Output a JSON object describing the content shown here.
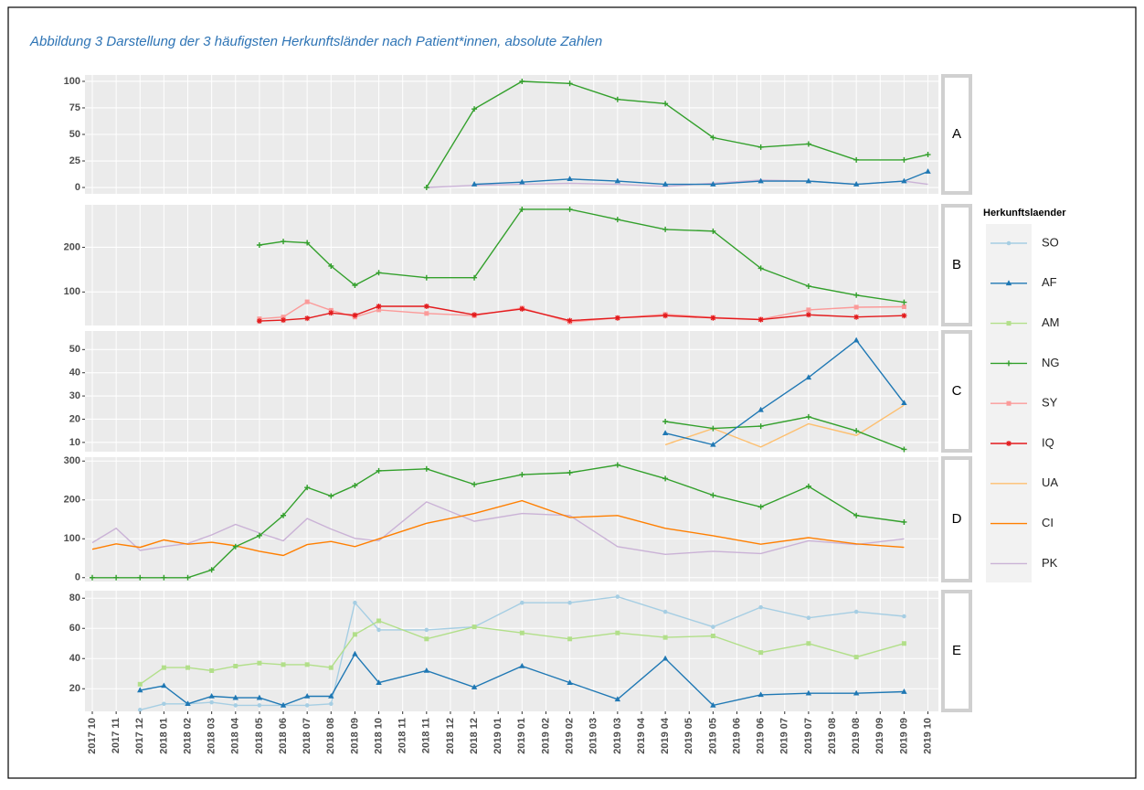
{
  "chart_data": {
    "type": "line",
    "title": "Abbildung 3 Darstellung der 3 häufigsten Herkunftsländer nach Patient*innen, absolute Zahlen",
    "categories": [
      "2017 10",
      "2017 11",
      "2017 12",
      "2018 01",
      "2018 02",
      "2018 03",
      "2018 04",
      "2018 05",
      "2018 06",
      "2018 07",
      "2018 08",
      "2018 09",
      "2018 10",
      "2018 11",
      "2018 11",
      "2018 12",
      "2018 12",
      "2019 01",
      "2019 01",
      "2019 02",
      "2019 02",
      "2019 03",
      "2019 03",
      "2019 04",
      "2019 04",
      "2019 05",
      "2019 05",
      "2019 06",
      "2019 06",
      "2019 07",
      "2019 07",
      "2019 08",
      "2019 08",
      "2019 09",
      "2019 09",
      "2019 10"
    ],
    "legend": {
      "title": "Herkunftslaender",
      "items": [
        {
          "name": "SO",
          "color": "#a6cee3",
          "marker": "circle"
        },
        {
          "name": "AF",
          "color": "#1f78b4",
          "marker": "triangle"
        },
        {
          "name": "AM",
          "color": "#b2df8a",
          "marker": "square"
        },
        {
          "name": "NG",
          "color": "#33a02c",
          "marker": "plus"
        },
        {
          "name": "SY",
          "color": "#fb9a99",
          "marker": "square"
        },
        {
          "name": "IQ",
          "color": "#e31a1c",
          "marker": "star"
        },
        {
          "name": "UA",
          "color": "#fdbf6f",
          "marker": "none"
        },
        {
          "name": "CI",
          "color": "#ff7f00",
          "marker": "none"
        },
        {
          "name": "PK",
          "color": "#cab2d6",
          "marker": "none"
        }
      ]
    },
    "grid": true,
    "facets": [
      {
        "label": "A",
        "ylim": [
          -6,
          106
        ],
        "yticks": [
          0,
          25,
          50,
          75,
          100
        ],
        "series": [
          {
            "name": "PK",
            "x": [
              "2018 11",
              "2018 12",
              "2019 01",
              "2019 02",
              "2019 03",
              "2019 04",
              "2019 05",
              "2019 06",
              "2019 07",
              "2019 08",
              "2019 09",
              "2019 10"
            ],
            "values": [
              0,
              2,
              3,
              4,
              3,
              1,
              4,
              7,
              6,
              3,
              6,
              3
            ]
          },
          {
            "name": "AF",
            "x": [
              "2018 12",
              "2019 01",
              "2019 02",
              "2019 03",
              "2019 04",
              "2019 05",
              "2019 06",
              "2019 07",
              "2019 08",
              "2019 09",
              "2019 10"
            ],
            "values": [
              3,
              5,
              8,
              6,
              3,
              3,
              6,
              6,
              3,
              6,
              15
            ]
          },
          {
            "name": "NG",
            "x": [
              "2018 11",
              "2018 12",
              "2019 01",
              "2019 02",
              "2019 03",
              "2019 04",
              "2019 05",
              "2019 06",
              "2019 07",
              "2019 08",
              "2019 09",
              "2019 10"
            ],
            "values": [
              0,
              74,
              100,
              98,
              83,
              79,
              47,
              38,
              41,
              26,
              26,
              31
            ]
          }
        ]
      },
      {
        "label": "B",
        "ylim": [
          25,
          295
        ],
        "yticks": [
          100,
          200
        ],
        "series": [
          {
            "name": "SY",
            "x": [
              "2018 05",
              "2018 06",
              "2018 07",
              "2018 08",
              "2018 09",
              "2018 10",
              "2018 11",
              "2018 12",
              "2019 01",
              "2019 02",
              "2019 03",
              "2019 04",
              "2019 05",
              "2019 06",
              "2019 07",
              "2019 08",
              "2019 09"
            ],
            "values": [
              40,
              44,
              78,
              59,
              44,
              60,
              52,
              47,
              64,
              33,
              42,
              50,
              43,
              39,
              60,
              66,
              67
            ]
          },
          {
            "name": "IQ",
            "x": [
              "2018 05",
              "2018 06",
              "2018 07",
              "2018 08",
              "2018 09",
              "2018 10",
              "2018 11",
              "2018 12",
              "2019 01",
              "2019 02",
              "2019 03",
              "2019 04",
              "2019 05",
              "2019 06",
              "2019 07",
              "2019 08",
              "2019 09"
            ],
            "values": [
              35,
              37,
              41,
              53,
              48,
              68,
              68,
              49,
              62,
              36,
              42,
              47,
              42,
              38,
              49,
              44,
              47
            ]
          },
          {
            "name": "NG",
            "x": [
              "2018 05",
              "2018 06",
              "2018 07",
              "2018 08",
              "2018 09",
              "2018 10",
              "2018 11",
              "2018 12",
              "2019 01",
              "2019 02",
              "2019 03",
              "2019 04",
              "2019 05",
              "2019 06",
              "2019 07",
              "2019 08",
              "2019 09"
            ],
            "values": [
              205,
              213,
              210,
              158,
              115,
              143,
              132,
              132,
              285,
              285,
              262,
              240,
              236,
              153,
              113,
              93,
              77
            ]
          }
        ]
      },
      {
        "label": "C",
        "ylim": [
          6,
          58
        ],
        "yticks": [
          10,
          20,
          30,
          40,
          50
        ],
        "series": [
          {
            "name": "UA",
            "x": [
              "2019 04",
              "2019 05",
              "2019 06",
              "2019 07",
              "2019 08",
              "2019 09"
            ],
            "values": [
              9,
              16,
              8,
              18,
              13,
              26
            ]
          },
          {
            "name": "NG",
            "x": [
              "2019 04",
              "2019 05",
              "2019 06",
              "2019 07",
              "2019 08",
              "2019 09"
            ],
            "values": [
              19,
              16,
              17,
              21,
              15,
              7
            ]
          },
          {
            "name": "AF",
            "x": [
              "2019 04",
              "2019 05",
              "2019 06",
              "2019 07",
              "2019 08",
              "2019 09"
            ],
            "values": [
              14,
              9,
              24,
              38,
              54,
              27
            ]
          }
        ]
      },
      {
        "label": "D",
        "ylim": [
          -10,
          310
        ],
        "yticks": [
          0,
          100,
          200,
          300
        ],
        "series": [
          {
            "name": "PK",
            "x": [
              "2017 10",
              "2017 11",
              "2017 12",
              "2018 01",
              "2018 02",
              "2018 03",
              "2018 04",
              "2018 05",
              "2018 06",
              "2018 07",
              "2018 08",
              "2018 09",
              "2018 10",
              "2018 11",
              "2018 12",
              "2019 01",
              "2019 02",
              "2019 03",
              "2019 04",
              "2019 05",
              "2019 06",
              "2019 07",
              "2019 08",
              "2019 09"
            ],
            "values": [
              90,
              127,
              70,
              80,
              88,
              110,
              137,
              115,
              95,
              152,
              125,
              101,
              95,
              195,
              145,
              165,
              160,
              80,
              60,
              68,
              62,
              95,
              85,
              100
            ]
          },
          {
            "name": "CI",
            "x": [
              "2017 10",
              "2017 11",
              "2017 12",
              "2018 01",
              "2018 02",
              "2018 03",
              "2018 04",
              "2018 05",
              "2018 06",
              "2018 07",
              "2018 08",
              "2018 09",
              "2018 10",
              "2018 11",
              "2018 12",
              "2019 01",
              "2019 02",
              "2019 03",
              "2019 04",
              "2019 05",
              "2019 06",
              "2019 07",
              "2019 08",
              "2019 09"
            ],
            "values": [
              73,
              87,
              78,
              97,
              86,
              91,
              82,
              68,
              57,
              85,
              93,
              80,
              100,
              140,
              165,
              198,
              155,
              160,
              127,
              108,
              86,
              103,
              87,
              78
            ]
          },
          {
            "name": "NG",
            "x": [
              "2017 10",
              "2017 11",
              "2017 12",
              "2018 01",
              "2018 02",
              "2018 03",
              "2018 04",
              "2018 05",
              "2018 06",
              "2018 07",
              "2018 08",
              "2018 09",
              "2018 10",
              "2018 11",
              "2018 12",
              "2019 01",
              "2019 02",
              "2019 03",
              "2019 04",
              "2019 05",
              "2019 06",
              "2019 07",
              "2019 08",
              "2019 09"
            ],
            "values": [
              0,
              0,
              0,
              0,
              0,
              20,
              80,
              108,
              160,
              232,
              210,
              237,
              275,
              280,
              240,
              265,
              270,
              290,
              255,
              212,
              182,
              235,
              160,
              143
            ]
          }
        ]
      },
      {
        "label": "E",
        "ylim": [
          5,
          85
        ],
        "yticks": [
          20,
          40,
          60,
          80
        ],
        "series": [
          {
            "name": "SO",
            "x": [
              "2017 12",
              "2018 01",
              "2018 02",
              "2018 03",
              "2018 04",
              "2018 05",
              "2018 06",
              "2018 07",
              "2018 08",
              "2018 09",
              "2018 10",
              "2018 11",
              "2018 12",
              "2019 01",
              "2019 02",
              "2019 03",
              "2019 04",
              "2019 05",
              "2019 06",
              "2019 07",
              "2019 08",
              "2019 09"
            ],
            "values": [
              6,
              10,
              10,
              11,
              9,
              9,
              9,
              9,
              10,
              77,
              59,
              59,
              61,
              77,
              77,
              81,
              71,
              61,
              74,
              67,
              71,
              68
            ]
          },
          {
            "name": "AM",
            "x": [
              "2017 12",
              "2018 01",
              "2018 02",
              "2018 03",
              "2018 04",
              "2018 05",
              "2018 06",
              "2018 07",
              "2018 08",
              "2018 09",
              "2018 10",
              "2018 11",
              "2018 12",
              "2019 01",
              "2019 02",
              "2019 03",
              "2019 04",
              "2019 05",
              "2019 06",
              "2019 07",
              "2019 08",
              "2019 09"
            ],
            "values": [
              23,
              34,
              34,
              32,
              35,
              37,
              36,
              36,
              34,
              56,
              65,
              53,
              61,
              57,
              53,
              57,
              54,
              55,
              44,
              50,
              41,
              50
            ]
          },
          {
            "name": "AF",
            "x": [
              "2017 12",
              "2018 01",
              "2018 02",
              "2018 03",
              "2018 04",
              "2018 05",
              "2018 06",
              "2018 07",
              "2018 08",
              "2018 09",
              "2018 10",
              "2018 11",
              "2018 12",
              "2019 01",
              "2019 02",
              "2019 03",
              "2019 04",
              "2019 05",
              "2019 06",
              "2019 07",
              "2019 08",
              "2019 09"
            ],
            "values": [
              19,
              22,
              10,
              15,
              14,
              14,
              9,
              15,
              15,
              43,
              24,
              32,
              21,
              35,
              24,
              13,
              40,
              9,
              16,
              17,
              17,
              18
            ]
          }
        ]
      }
    ]
  }
}
